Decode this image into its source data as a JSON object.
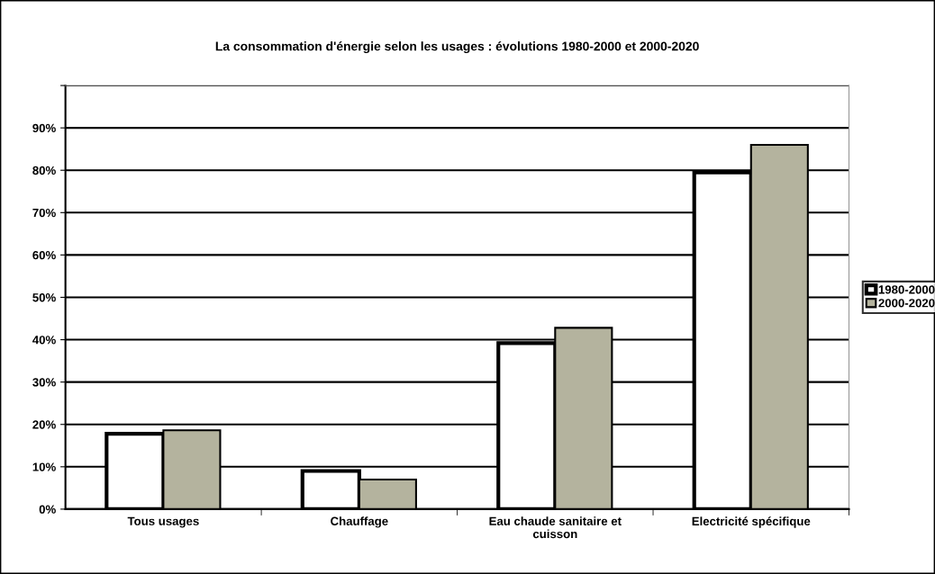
{
  "chart_data": {
    "type": "bar",
    "title": "La consommation d'énergie selon les usages : évolutions 1980-2000 et 2000-2020",
    "categories": [
      "Tous usages",
      "Chauffage",
      "Eau chaude sanitaire et\ncuisson",
      "Electricité spécifique"
    ],
    "series": [
      {
        "name": "1980-2000",
        "color": "#ffffff",
        "values": [
          17.8,
          9.0,
          39.2,
          79.5
        ]
      },
      {
        "name": "2000-2020",
        "color": "#b4b39e",
        "values": [
          18.6,
          7.0,
          42.8,
          86.0
        ]
      }
    ],
    "ylim": [
      0,
      100
    ],
    "yticks": [
      {
        "value": 0,
        "label": "0%"
      },
      {
        "value": 10,
        "label": "10%"
      },
      {
        "value": 20,
        "label": "20%"
      },
      {
        "value": 30,
        "label": "30%"
      },
      {
        "value": 40,
        "label": "40%"
      },
      {
        "value": 50,
        "label": "50%"
      },
      {
        "value": 60,
        "label": "60%"
      },
      {
        "value": 70,
        "label": "70%"
      },
      {
        "value": 80,
        "label": "80%"
      },
      {
        "value": 90,
        "label": "90%"
      },
      {
        "value": 100,
        "label": null
      }
    ],
    "grid": "y",
    "legend": "right"
  }
}
